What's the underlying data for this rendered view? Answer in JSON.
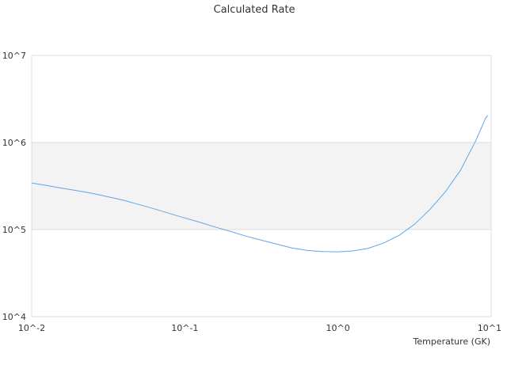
{
  "chart_data": {
    "type": "line",
    "title": "Calculated Rate",
    "xlabel": "Temperature (GK)",
    "ylabel": "",
    "x_scale": "log",
    "y_scale": "log",
    "xlim": [
      0.01,
      10
    ],
    "ylim": [
      10000,
      10000000
    ],
    "x_ticks": [
      {
        "value": 0.01,
        "label": "10^-2"
      },
      {
        "value": 0.1,
        "label": "10^-1"
      },
      {
        "value": 1,
        "label": "10^0"
      },
      {
        "value": 10,
        "label": "10^1"
      }
    ],
    "y_ticks": [
      {
        "value": 10000,
        "label": "10^4"
      },
      {
        "value": 100000,
        "label": "10^5"
      },
      {
        "value": 1000000,
        "label": "10^6"
      },
      {
        "value": 10000000,
        "label": "10^7"
      }
    ],
    "shaded_band": {
      "y_from": 100000,
      "y_to": 1000000,
      "color": "#f3f3f3"
    },
    "grid": true,
    "series": [
      {
        "color": "#5ea7e8",
        "points": [
          [
            0.01,
            343000
          ],
          [
            0.0126,
            320000
          ],
          [
            0.0158,
            298000
          ],
          [
            0.02,
            279000
          ],
          [
            0.0251,
            260000
          ],
          [
            0.0316,
            238000
          ],
          [
            0.0398,
            217000
          ],
          [
            0.0501,
            194000
          ],
          [
            0.0631,
            173000
          ],
          [
            0.0794,
            153000
          ],
          [
            0.1,
            136000
          ],
          [
            0.126,
            121000
          ],
          [
            0.158,
            107000
          ],
          [
            0.2,
            95000
          ],
          [
            0.251,
            84000
          ],
          [
            0.316,
            75500
          ],
          [
            0.398,
            68000
          ],
          [
            0.501,
            61500
          ],
          [
            0.631,
            57500
          ],
          [
            0.794,
            56000
          ],
          [
            1.0,
            55500
          ],
          [
            1.26,
            57000
          ],
          [
            1.58,
            61000
          ],
          [
            2.0,
            70500
          ],
          [
            2.51,
            86000
          ],
          [
            3.16,
            115000
          ],
          [
            3.98,
            170000
          ],
          [
            5.01,
            270000
          ],
          [
            6.31,
            480000
          ],
          [
            7.94,
            1050000
          ],
          [
            9.2,
            1900000
          ],
          [
            9.5,
            2050000
          ]
        ]
      }
    ]
  }
}
